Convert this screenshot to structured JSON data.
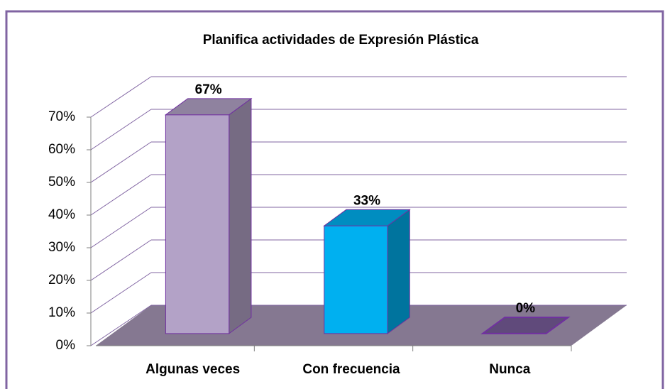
{
  "chart_data": {
    "type": "bar3d",
    "title": "Planifica actividades de Expresión Plástica",
    "categories": [
      "Algunas veces",
      "Con frecuencia",
      "Nunca"
    ],
    "values": [
      67,
      33,
      0
    ],
    "value_labels": [
      "67%",
      "33%",
      "0%"
    ],
    "colors": [
      "#b3a2c7",
      "#00b0f0",
      "#604a7b"
    ],
    "ylim": [
      0,
      70
    ],
    "yticks": [
      {
        "value": 0,
        "label": "0%"
      },
      {
        "value": 10,
        "label": "10%"
      },
      {
        "value": 20,
        "label": "20%"
      },
      {
        "value": 30,
        "label": "30%"
      },
      {
        "value": 40,
        "label": "40%"
      },
      {
        "value": 50,
        "label": "50%"
      },
      {
        "value": 60,
        "label": "60%"
      },
      {
        "value": 70,
        "label": "70%"
      }
    ],
    "grid": true
  }
}
